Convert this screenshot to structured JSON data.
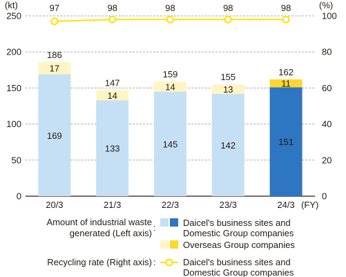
{
  "chart_data": {
    "type": "bar",
    "categories": [
      "20/3",
      "21/3",
      "22/3",
      "23/3",
      "24/3"
    ],
    "category_suffix": "(FY)",
    "y_left_unit": "(kt)",
    "y_right_unit": "(%)",
    "ylim_left": [
      0,
      250
    ],
    "ylim_right": [
      0,
      100
    ],
    "left_ticks": [
      "0",
      "50",
      "100",
      "150",
      "200",
      "250"
    ],
    "right_ticks": [
      "0",
      "20",
      "40",
      "60",
      "80",
      "100"
    ],
    "grid": "dashed horizontal",
    "series": [
      {
        "name": "Daicel's business sites and Domestic Group companies",
        "kind": "stacked-bar",
        "axis": "left",
        "values": [
          169,
          133,
          145,
          142,
          151
        ],
        "colors": [
          "#c5e0f4",
          "#c5e0f4",
          "#c5e0f4",
          "#c5e0f4",
          "#2e75c2"
        ]
      },
      {
        "name": "Overseas Group companies",
        "kind": "stacked-bar",
        "axis": "left",
        "values": [
          17,
          14,
          14,
          13,
          11
        ],
        "colors": [
          "#fff5c4",
          "#fff5c4",
          "#fff5c4",
          "#fff5c4",
          "#ffd72e"
        ]
      },
      {
        "name": "Daicel's business sites and Domestic Group companies",
        "kind": "line",
        "axis": "right",
        "values": [
          97,
          98,
          98,
          98,
          98
        ],
        "color": "#ffe100"
      }
    ],
    "totals": [
      186,
      147,
      159,
      155,
      162
    ]
  },
  "legend": {
    "waste_label_line1": "Amount of industrial waste",
    "waste_label_line2": "generated (Left axis)",
    "colon": ":",
    "domestic_line1": "Daicel's business sites and",
    "domestic_line2": "Domestic Group companies",
    "overseas": "Overseas Group companies",
    "recycling_label": "Recycling rate (Right axis)",
    "recycling_line1": "Daicel's business sites and",
    "recycling_line2": "Domestic Group companies"
  }
}
